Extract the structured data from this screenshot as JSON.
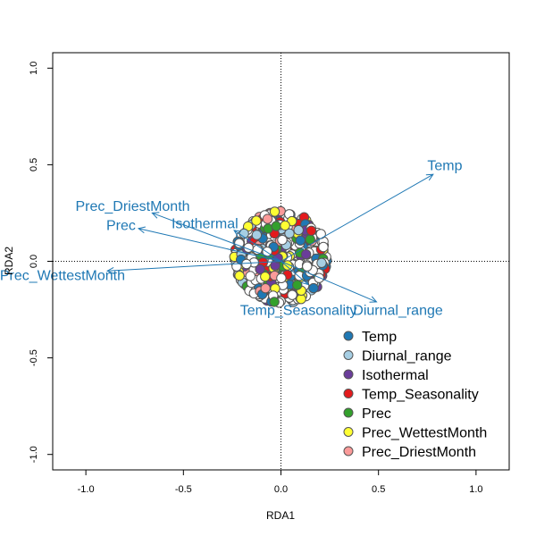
{
  "chart_data": {
    "type": "scatter",
    "subtype": "RDA biplot",
    "title": "",
    "xlabel": "RDA1",
    "ylabel": "RDA2",
    "xlim": [
      -1.17,
      1.17
    ],
    "ylim": [
      -1.08,
      1.08
    ],
    "xticks": [
      "-1.0",
      "-0.5",
      "0.0",
      "0.5",
      "1.0"
    ],
    "yticks": [
      "-1.0",
      "-0.5",
      "0.0",
      "0.5",
      "1.0"
    ],
    "reference_lines": {
      "x": 0,
      "y": 0,
      "style": "dotted"
    },
    "arrow_color": "#1f78b4",
    "arrows": [
      {
        "name": "Temp",
        "x": 0.78,
        "y": 0.45,
        "label_x": 0.84,
        "label_y": 0.5
      },
      {
        "name": "Diurnal_range",
        "x": 0.49,
        "y": -0.21,
        "label_x": 0.6,
        "label_y": -0.25
      },
      {
        "name": "Isothermal",
        "x": -0.24,
        "y": 0.16,
        "label_x": -0.39,
        "label_y": 0.2
      },
      {
        "name": "Temp_Seasonality",
        "x": 0.14,
        "y": -0.12,
        "label_x": 0.09,
        "label_y": -0.25
      },
      {
        "name": "Prec",
        "x": -0.73,
        "y": 0.17,
        "label_x": -0.82,
        "label_y": 0.19
      },
      {
        "name": "Prec_WettestMonth",
        "x": -0.89,
        "y": -0.05,
        "label_x": -1.12,
        "label_y": -0.07
      },
      {
        "name": "Prec_DriestMonth",
        "x": -0.66,
        "y": 0.25,
        "label_x": -0.76,
        "label_y": 0.29
      }
    ],
    "point_cloud": {
      "center": [
        0.0,
        0.02
      ],
      "radius_x": 0.24,
      "radius_y": 0.24,
      "outline_color": "#555555"
    },
    "legend": {
      "position": "bottom-right",
      "entries": [
        {
          "label": "Temp",
          "color": "#1f78b4"
        },
        {
          "label": "Diurnal_range",
          "color": "#a6cee3"
        },
        {
          "label": "Isothermal",
          "color": "#6a3d9a"
        },
        {
          "label": "Temp_Seasonality",
          "color": "#e31a1c"
        },
        {
          "label": "Prec",
          "color": "#33a02c"
        },
        {
          "label": "Prec_WettestMonth",
          "color": "#ffff33"
        },
        {
          "label": "Prec_DriestMonth",
          "color": "#fb9a99"
        }
      ]
    }
  }
}
